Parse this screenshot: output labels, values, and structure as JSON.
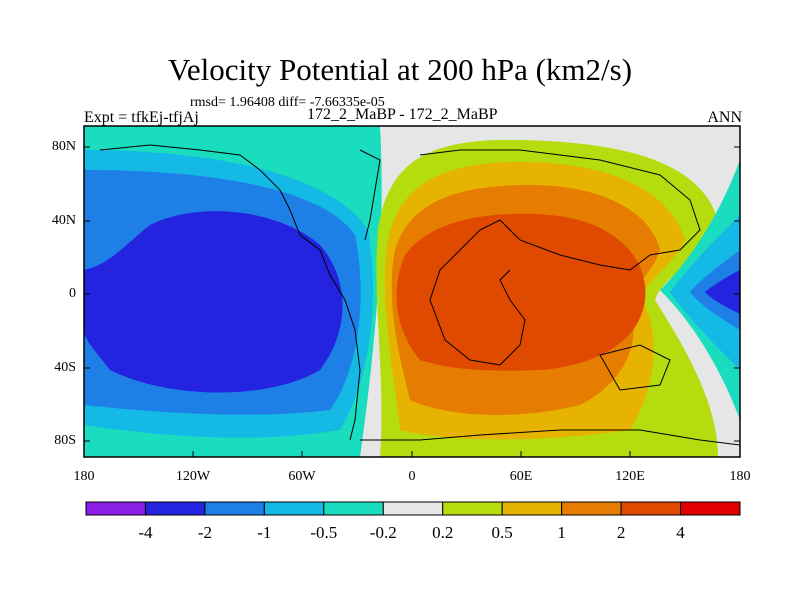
{
  "header": {
    "title": "Velocity Potential at 200 hPa (km2/s)",
    "stats": "rmsd= 1.96408 diff= -7.66335e-05",
    "experiment": "Expt = tfkEj-tfjAj",
    "case": "172_2_MaBP - 172_2_MaBP",
    "season": "ANN"
  },
  "map": {
    "projection": "cylindrical equidistant",
    "lon_range": [
      -180,
      180
    ],
    "lat_range": [
      -90,
      90
    ],
    "continent_outlines": true,
    "y_ticks": [
      "80N",
      "40N",
      "0",
      "40S",
      "80S"
    ],
    "x_ticks": [
      "180",
      "120W",
      "60W",
      "0",
      "60E",
      "120E",
      "180"
    ]
  },
  "colorbar": {
    "labels": [
      "-4",
      "-2",
      "-1",
      "-0.5",
      "-0.2",
      "0.2",
      "0.5",
      "1",
      "2",
      "4"
    ],
    "colors": [
      "#8a1ee6",
      "#2323e0",
      "#1e7fe6",
      "#14b9e6",
      "#1adcbf",
      "#e6e6e6",
      "#b5dc0e",
      "#e6b400",
      "#e67d00",
      "#e04a00",
      "#e00000"
    ]
  },
  "chart_data": {
    "type": "heatmap",
    "title": "Velocity Potential at 200 hPa (km2/s)",
    "xlabel": "",
    "ylabel": "",
    "x_ticks": [
      "180",
      "120W",
      "60W",
      "0",
      "60E",
      "120E",
      "180"
    ],
    "y_ticks": [
      "80N",
      "40N",
      "0",
      "40S",
      "80S"
    ],
    "contour_levels": [
      -4,
      -2,
      -1,
      -0.5,
      -0.2,
      0.2,
      0.5,
      1,
      2,
      4
    ],
    "features": [
      {
        "region": "Pacific (160W-60W)",
        "sign": "negative",
        "min_level": -2
      },
      {
        "region": "Eastern Hemisphere (20E-120E)",
        "sign": "positive",
        "max_level": 2
      },
      {
        "region": "Date line (150E-180)",
        "sign": "negative",
        "min_level": -2
      }
    ]
  }
}
